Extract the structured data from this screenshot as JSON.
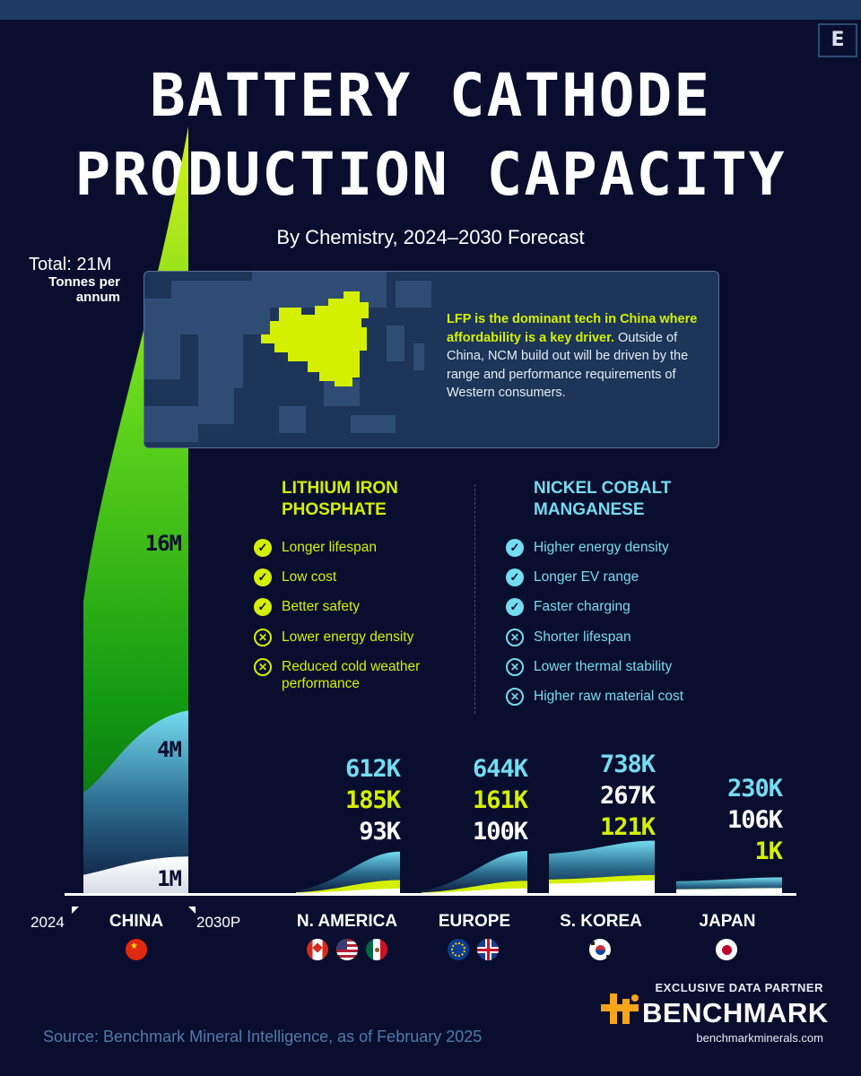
{
  "header": {
    "title_line1": "BATTERY CATHODE",
    "title_line2": "PRODUCTION CAPACITY",
    "subtitle": "By Chemistry, 2024–2030 Forecast",
    "logo_letter": "E"
  },
  "total": {
    "label": "Total: 21M",
    "units": "Tonnes per annum"
  },
  "callout": {
    "highlight": "LFP is the dominant tech in China where affordability is a key driver.",
    "body": "Outside of China, NCM build out will be driven by the range and performance requirements of Western consumers.",
    "map_icon": "asia-map-icon"
  },
  "lfp": {
    "title": "LITHIUM IRON PHOSPHATE",
    "pros": [
      "Longer lifespan",
      "Low cost",
      "Better safety"
    ],
    "cons": [
      "Lower energy density",
      "Reduced cold weather performance"
    ]
  },
  "ncm": {
    "title": "NICKEL COBALT MANGANESE",
    "pros": [
      "Higher energy density",
      "Longer EV range",
      "Faster charging"
    ],
    "cons": [
      "Shorter lifespan",
      "Lower thermal stability",
      "Higher raw material cost"
    ]
  },
  "axis": {
    "start_year": "2024",
    "end_year": "2030P"
  },
  "colors": {
    "lfp": "#d4f000",
    "ncm": "#74dcf0",
    "other": "#ffffff",
    "background": "#0a0e2e"
  },
  "chart_data": {
    "type": "area",
    "x": [
      "2024",
      "2030P"
    ],
    "units": "Tonnes per annum",
    "series_legend": [
      "Lithium Iron Phosphate",
      "Nickel Cobalt Manganese",
      "Other"
    ],
    "china": {
      "name": "CHINA",
      "flags": [
        "china-flag-icon"
      ],
      "total_2030": "21M",
      "labels_2030": {
        "lfp": "16M",
        "ncm": "4M",
        "other": "1M"
      },
      "values_2030": {
        "lfp": 16000000,
        "ncm": 4000000,
        "other": 1000000
      }
    },
    "regions": [
      {
        "name": "N. AMERICA",
        "flags": [
          "canada-flag-icon",
          "usa-flag-icon",
          "mexico-flag-icon"
        ],
        "labels_2030": {
          "top": "612K",
          "mid": "185K",
          "bottom": "93K"
        },
        "values_2030": {
          "ncm": 612000,
          "lfp": 185000,
          "other": 93000
        }
      },
      {
        "name": "EUROPE",
        "flags": [
          "eu-flag-icon",
          "uk-flag-icon"
        ],
        "labels_2030": {
          "top": "644K",
          "mid": "161K",
          "bottom": "100K"
        },
        "values_2030": {
          "ncm": 644000,
          "lfp": 161000,
          "other": 100000
        }
      },
      {
        "name": "S. KOREA",
        "flags": [
          "south-korea-flag-icon"
        ],
        "labels_2030": {
          "top": "738K",
          "mid": "267K",
          "bottom": "121K"
        },
        "values_2030": {
          "ncm": 738000,
          "other": 267000,
          "lfp": 121000
        }
      },
      {
        "name": "JAPAN",
        "flags": [
          "japan-flag-icon"
        ],
        "labels_2030": {
          "top": "230K",
          "mid": "106K",
          "bottom": "1K"
        },
        "values_2030": {
          "ncm": 230000,
          "other": 106000,
          "lfp": 1000
        }
      }
    ]
  },
  "partner": {
    "label": "EXCLUSIVE DATA PARTNER",
    "name": "BENCHMARK",
    "url": "benchmarkminerals.com",
    "logo_icon": "benchmark-logo-icon"
  },
  "source": "Source: Benchmark Mineral Intelligence,  as of February 2025"
}
